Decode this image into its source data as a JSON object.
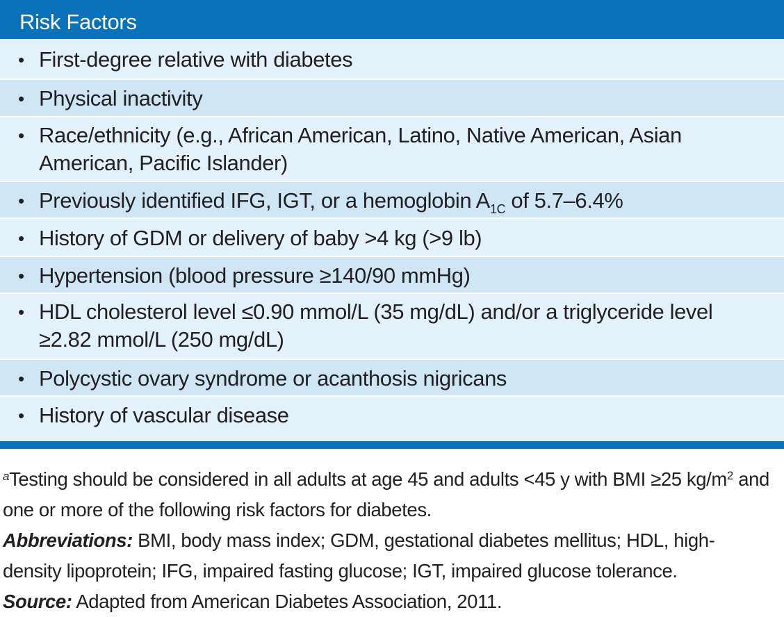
{
  "header": {
    "title": "Risk Factors"
  },
  "risk_factors": [
    "First-degree relative with diabetes",
    "Physical inactivity",
    "Race/ethnicity (e.g., African American, Latino, Native American, Asian American, Pacific Islander)",
    {
      "before": "Previously identified IFG, IGT, or a hemoglobin A",
      "sub": "1C",
      "after": " of 5.7–6.4%"
    },
    "History of GDM or delivery of baby >4 kg (>9 lb)",
    "Hypertension (blood pressure ≥140/90 mmHg)",
    "HDL cholesterol level ≤0.90 mmol/L (35 mg/dL) and/or a triglyceride level ≥2.82 mmol/L (250 mg/dL)",
    "Polycystic ovary syndrome or acanthosis nigricans",
    "History of vascular disease"
  ],
  "bullet_symbol": "•",
  "footnote": {
    "marker": "a",
    "text": "Testing should be considered in all adults at age 45 and adults <45 y with BMI ≥25 kg/m",
    "superscript": "2",
    "text_end": " and one or more of the following risk factors for diabetes."
  },
  "abbreviations": {
    "label": "Abbreviations:",
    "text": " BMI, body mass index; GDM, gestational diabetes mellitus; HDL, high-density lipoprotein; IFG, impaired fasting glucose; IGT, impaired glucose tolerance."
  },
  "source": {
    "label": "Source:",
    "text": " Adapted from American Diabetes Association, 2011."
  },
  "colors": {
    "header_bg": "#0a72bb",
    "row_light": "#e3f2fa",
    "row_dark": "#cfe6f4",
    "text": "#231f20"
  }
}
